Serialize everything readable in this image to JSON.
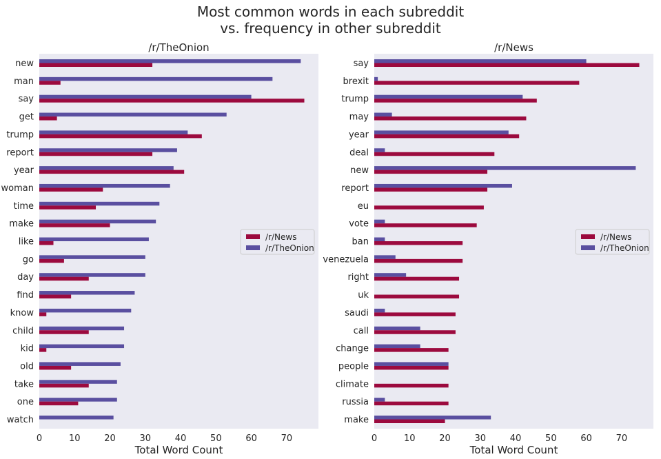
{
  "figure": {
    "title_line1": "Most common words in each subreddit",
    "title_line2": "vs. frequency in other subreddit"
  },
  "colors": {
    "news": "#9c0a3e",
    "onion": "#5a4fa0",
    "plot_bg": "#eaeaf2"
  },
  "chart_data": [
    {
      "type": "bar",
      "orientation": "horizontal",
      "title": "/r/TheOnion",
      "xlabel": "Total Word Count",
      "xlim": [
        0,
        79
      ],
      "xticks": [
        0,
        10,
        20,
        30,
        40,
        50,
        60,
        70
      ],
      "legend_position": "center-right",
      "categories": [
        "new",
        "man",
        "say",
        "get",
        "trump",
        "report",
        "year",
        "woman",
        "time",
        "make",
        "like",
        "go",
        "day",
        "find",
        "know",
        "child",
        "kid",
        "old",
        "take",
        "one",
        "watch"
      ],
      "series": [
        {
          "name": "/r/News",
          "color": "#9c0a3e",
          "values": [
            32,
            6,
            75,
            5,
            46,
            32,
            41,
            18,
            16,
            20,
            4,
            7,
            14,
            9,
            2,
            14,
            2,
            9,
            14,
            11,
            0
          ]
        },
        {
          "name": "/r/TheOnion",
          "color": "#5a4fa0",
          "values": [
            74,
            66,
            60,
            53,
            42,
            39,
            38,
            37,
            34,
            33,
            31,
            30,
            30,
            27,
            26,
            24,
            24,
            23,
            22,
            22,
            21
          ]
        }
      ]
    },
    {
      "type": "bar",
      "orientation": "horizontal",
      "title": "/r/News",
      "xlabel": "Total Word Count",
      "xlim": [
        0,
        79
      ],
      "xticks": [
        0,
        10,
        20,
        30,
        40,
        50,
        60,
        70
      ],
      "legend_position": "center-right",
      "categories": [
        "say",
        "brexit",
        "trump",
        "may",
        "year",
        "deal",
        "new",
        "report",
        "eu",
        "vote",
        "ban",
        "venezuela",
        "right",
        "uk",
        "saudi",
        "call",
        "change",
        "people",
        "climate",
        "russia",
        "make"
      ],
      "series": [
        {
          "name": "/r/News",
          "color": "#9c0a3e",
          "values": [
            75,
            58,
            46,
            43,
            41,
            34,
            32,
            32,
            31,
            29,
            25,
            25,
            24,
            24,
            23,
            23,
            21,
            21,
            21,
            21,
            20
          ]
        },
        {
          "name": "/r/TheOnion",
          "color": "#5a4fa0",
          "values": [
            60,
            1,
            42,
            5,
            38,
            3,
            74,
            39,
            0,
            3,
            3,
            6,
            9,
            0,
            3,
            13,
            13,
            21,
            0,
            3,
            33
          ]
        }
      ]
    }
  ]
}
